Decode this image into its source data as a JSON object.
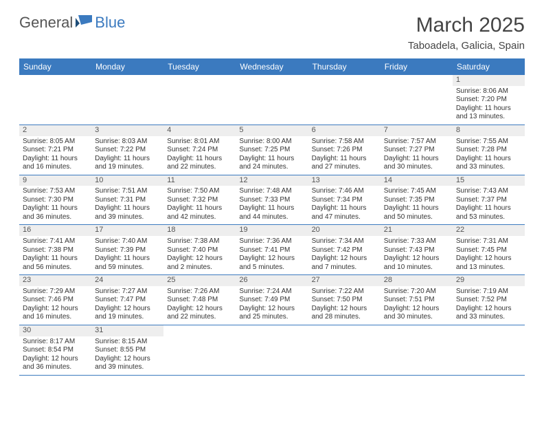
{
  "brand": {
    "general": "General",
    "blue": "Blue"
  },
  "title": "March 2025",
  "location": "Taboadela, Galicia, Spain",
  "colors": {
    "header_bg": "#3b7abf",
    "header_text": "#ffffff",
    "daynum_bg": "#eeeeee",
    "border": "#3b7abf",
    "text": "#333333",
    "background": "#ffffff"
  },
  "weekdays": [
    "Sunday",
    "Monday",
    "Tuesday",
    "Wednesday",
    "Thursday",
    "Friday",
    "Saturday"
  ],
  "cells": [
    {
      "blank": true
    },
    {
      "blank": true
    },
    {
      "blank": true
    },
    {
      "blank": true
    },
    {
      "blank": true
    },
    {
      "blank": true
    },
    {
      "n": "1",
      "sr": "Sunrise: 8:06 AM",
      "ss": "Sunset: 7:20 PM",
      "d1": "Daylight: 11 hours",
      "d2": "and 13 minutes."
    },
    {
      "n": "2",
      "sr": "Sunrise: 8:05 AM",
      "ss": "Sunset: 7:21 PM",
      "d1": "Daylight: 11 hours",
      "d2": "and 16 minutes."
    },
    {
      "n": "3",
      "sr": "Sunrise: 8:03 AM",
      "ss": "Sunset: 7:22 PM",
      "d1": "Daylight: 11 hours",
      "d2": "and 19 minutes."
    },
    {
      "n": "4",
      "sr": "Sunrise: 8:01 AM",
      "ss": "Sunset: 7:24 PM",
      "d1": "Daylight: 11 hours",
      "d2": "and 22 minutes."
    },
    {
      "n": "5",
      "sr": "Sunrise: 8:00 AM",
      "ss": "Sunset: 7:25 PM",
      "d1": "Daylight: 11 hours",
      "d2": "and 24 minutes."
    },
    {
      "n": "6",
      "sr": "Sunrise: 7:58 AM",
      "ss": "Sunset: 7:26 PM",
      "d1": "Daylight: 11 hours",
      "d2": "and 27 minutes."
    },
    {
      "n": "7",
      "sr": "Sunrise: 7:57 AM",
      "ss": "Sunset: 7:27 PM",
      "d1": "Daylight: 11 hours",
      "d2": "and 30 minutes."
    },
    {
      "n": "8",
      "sr": "Sunrise: 7:55 AM",
      "ss": "Sunset: 7:28 PM",
      "d1": "Daylight: 11 hours",
      "d2": "and 33 minutes."
    },
    {
      "n": "9",
      "sr": "Sunrise: 7:53 AM",
      "ss": "Sunset: 7:30 PM",
      "d1": "Daylight: 11 hours",
      "d2": "and 36 minutes."
    },
    {
      "n": "10",
      "sr": "Sunrise: 7:51 AM",
      "ss": "Sunset: 7:31 PM",
      "d1": "Daylight: 11 hours",
      "d2": "and 39 minutes."
    },
    {
      "n": "11",
      "sr": "Sunrise: 7:50 AM",
      "ss": "Sunset: 7:32 PM",
      "d1": "Daylight: 11 hours",
      "d2": "and 42 minutes."
    },
    {
      "n": "12",
      "sr": "Sunrise: 7:48 AM",
      "ss": "Sunset: 7:33 PM",
      "d1": "Daylight: 11 hours",
      "d2": "and 44 minutes."
    },
    {
      "n": "13",
      "sr": "Sunrise: 7:46 AM",
      "ss": "Sunset: 7:34 PM",
      "d1": "Daylight: 11 hours",
      "d2": "and 47 minutes."
    },
    {
      "n": "14",
      "sr": "Sunrise: 7:45 AM",
      "ss": "Sunset: 7:35 PM",
      "d1": "Daylight: 11 hours",
      "d2": "and 50 minutes."
    },
    {
      "n": "15",
      "sr": "Sunrise: 7:43 AM",
      "ss": "Sunset: 7:37 PM",
      "d1": "Daylight: 11 hours",
      "d2": "and 53 minutes."
    },
    {
      "n": "16",
      "sr": "Sunrise: 7:41 AM",
      "ss": "Sunset: 7:38 PM",
      "d1": "Daylight: 11 hours",
      "d2": "and 56 minutes."
    },
    {
      "n": "17",
      "sr": "Sunrise: 7:40 AM",
      "ss": "Sunset: 7:39 PM",
      "d1": "Daylight: 11 hours",
      "d2": "and 59 minutes."
    },
    {
      "n": "18",
      "sr": "Sunrise: 7:38 AM",
      "ss": "Sunset: 7:40 PM",
      "d1": "Daylight: 12 hours",
      "d2": "and 2 minutes."
    },
    {
      "n": "19",
      "sr": "Sunrise: 7:36 AM",
      "ss": "Sunset: 7:41 PM",
      "d1": "Daylight: 12 hours",
      "d2": "and 5 minutes."
    },
    {
      "n": "20",
      "sr": "Sunrise: 7:34 AM",
      "ss": "Sunset: 7:42 PM",
      "d1": "Daylight: 12 hours",
      "d2": "and 7 minutes."
    },
    {
      "n": "21",
      "sr": "Sunrise: 7:33 AM",
      "ss": "Sunset: 7:43 PM",
      "d1": "Daylight: 12 hours",
      "d2": "and 10 minutes."
    },
    {
      "n": "22",
      "sr": "Sunrise: 7:31 AM",
      "ss": "Sunset: 7:45 PM",
      "d1": "Daylight: 12 hours",
      "d2": "and 13 minutes."
    },
    {
      "n": "23",
      "sr": "Sunrise: 7:29 AM",
      "ss": "Sunset: 7:46 PM",
      "d1": "Daylight: 12 hours",
      "d2": "and 16 minutes."
    },
    {
      "n": "24",
      "sr": "Sunrise: 7:27 AM",
      "ss": "Sunset: 7:47 PM",
      "d1": "Daylight: 12 hours",
      "d2": "and 19 minutes."
    },
    {
      "n": "25",
      "sr": "Sunrise: 7:26 AM",
      "ss": "Sunset: 7:48 PM",
      "d1": "Daylight: 12 hours",
      "d2": "and 22 minutes."
    },
    {
      "n": "26",
      "sr": "Sunrise: 7:24 AM",
      "ss": "Sunset: 7:49 PM",
      "d1": "Daylight: 12 hours",
      "d2": "and 25 minutes."
    },
    {
      "n": "27",
      "sr": "Sunrise: 7:22 AM",
      "ss": "Sunset: 7:50 PM",
      "d1": "Daylight: 12 hours",
      "d2": "and 28 minutes."
    },
    {
      "n": "28",
      "sr": "Sunrise: 7:20 AM",
      "ss": "Sunset: 7:51 PM",
      "d1": "Daylight: 12 hours",
      "d2": "and 30 minutes."
    },
    {
      "n": "29",
      "sr": "Sunrise: 7:19 AM",
      "ss": "Sunset: 7:52 PM",
      "d1": "Daylight: 12 hours",
      "d2": "and 33 minutes."
    },
    {
      "n": "30",
      "sr": "Sunrise: 8:17 AM",
      "ss": "Sunset: 8:54 PM",
      "d1": "Daylight: 12 hours",
      "d2": "and 36 minutes."
    },
    {
      "n": "31",
      "sr": "Sunrise: 8:15 AM",
      "ss": "Sunset: 8:55 PM",
      "d1": "Daylight: 12 hours",
      "d2": "and 39 minutes."
    },
    {
      "blank": true
    },
    {
      "blank": true
    },
    {
      "blank": true
    },
    {
      "blank": true
    },
    {
      "blank": true
    }
  ]
}
